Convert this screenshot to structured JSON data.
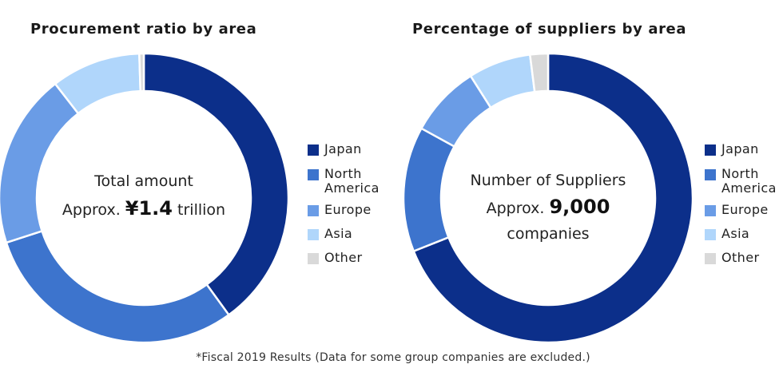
{
  "chart_data": [
    {
      "type": "pie",
      "title": "Procurement ratio by area",
      "center_label": "Total amount",
      "center_prefix": "Approx.",
      "center_value": "¥1.4",
      "center_suffix": "trillion",
      "categories": [
        "Japan",
        "North America",
        "Europe",
        "Asia",
        "Other"
      ],
      "values": [
        40,
        30,
        19.5,
        10,
        0.5
      ],
      "unit": "%"
    },
    {
      "type": "pie",
      "title": "Percentage of suppliers by area",
      "center_label": "Number of Suppliers",
      "center_prefix": "Approx.",
      "center_value": "9,000",
      "center_suffix": "companies",
      "categories": [
        "Japan",
        "North America",
        "Europe",
        "Asia",
        "Other"
      ],
      "values": [
        69,
        14,
        8,
        7,
        2
      ],
      "unit": "%"
    }
  ],
  "colors": {
    "Japan": "#0c2f8a",
    "North America": "#3d74cd",
    "Europe": "#6a9ce6",
    "Asia": "#b0d6fb",
    "Other": "#d9d9d9"
  },
  "legend": [
    "Japan",
    "North America",
    "Europe",
    "Asia",
    "Other"
  ],
  "footnote": "*Fiscal 2019 Results (Data for some group companies are excluded.)"
}
